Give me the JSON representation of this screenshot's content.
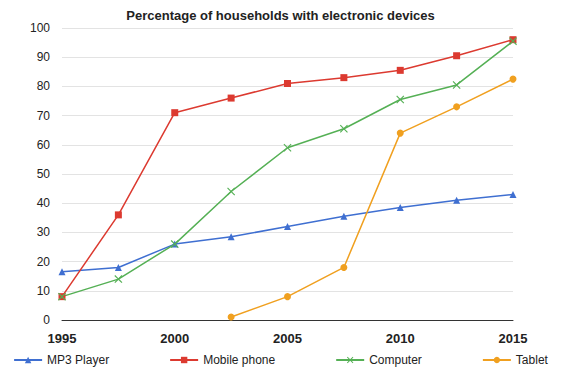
{
  "chart_data": {
    "type": "line",
    "title": "Percentage of households with electronic devices",
    "x": [
      1995,
      1997.5,
      2000,
      2002.5,
      2005,
      2007.5,
      2010,
      2012.5,
      2015
    ],
    "series": [
      {
        "name": "MP3 Player",
        "color": "#3f6fd1",
        "marker": "triangle",
        "values": [
          16.5,
          18,
          26,
          28.5,
          32,
          35.5,
          38.5,
          41,
          43
        ]
      },
      {
        "name": "Mobile phone",
        "color": "#dc3a30",
        "marker": "square",
        "values": [
          8,
          36,
          71,
          76,
          81,
          83,
          85.5,
          90.5,
          96
        ]
      },
      {
        "name": "Computer",
        "color": "#55b055",
        "marker": "x",
        "values": [
          8,
          14,
          26,
          44,
          59,
          65.5,
          75.5,
          80.5,
          95.5
        ]
      },
      {
        "name": "Tablet",
        "color": "#f0a020",
        "marker": "circle",
        "values": [
          null,
          null,
          null,
          1,
          8,
          18,
          64,
          73,
          82.5
        ]
      }
    ],
    "xlim": [
      1995,
      2015
    ],
    "xticks": [
      1995,
      2000,
      2005,
      2010,
      2015
    ],
    "ylim": [
      0,
      100
    ],
    "yticks": [
      0,
      10,
      20,
      30,
      40,
      50,
      60,
      70,
      80,
      90,
      100
    ],
    "grid": true,
    "legend": "bottom"
  }
}
